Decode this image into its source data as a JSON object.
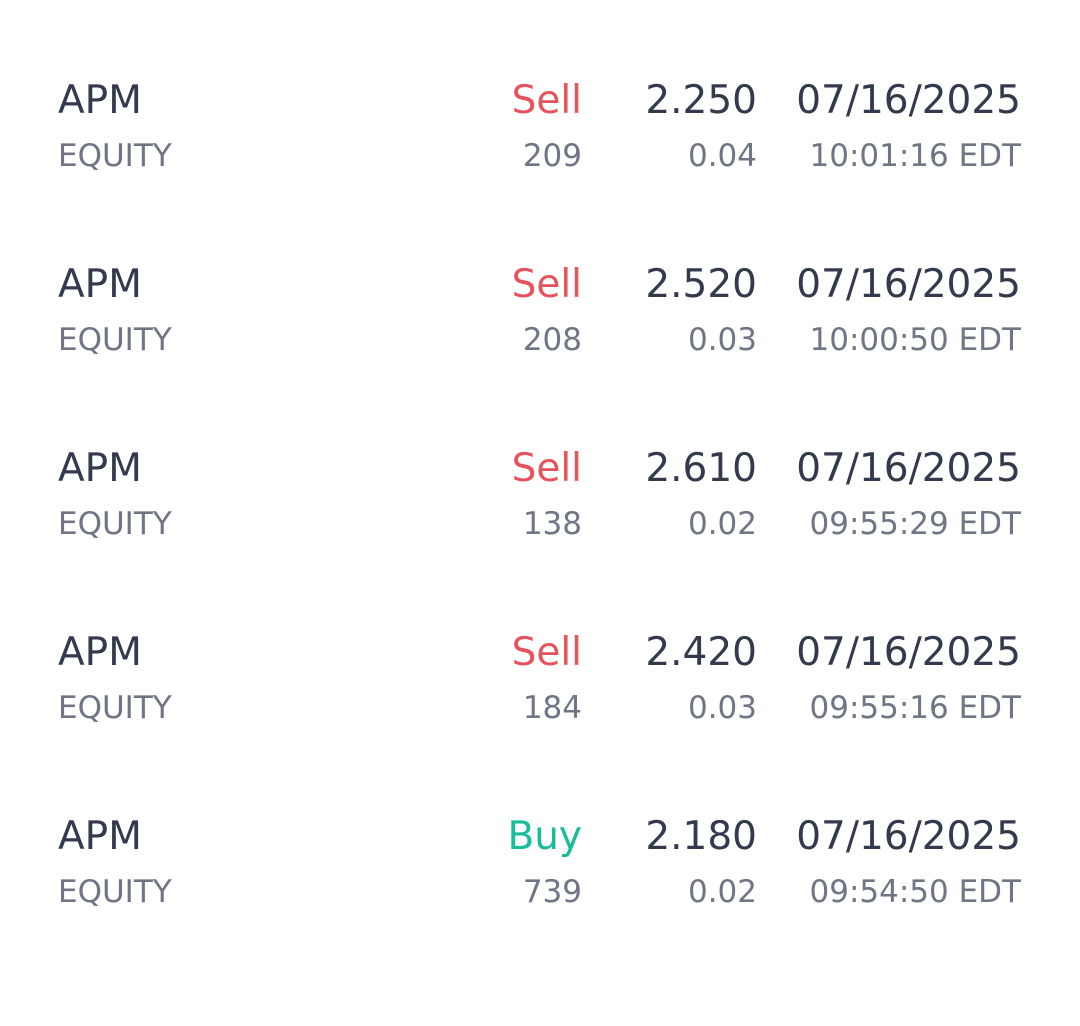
{
  "colors": {
    "sell": "#e5535f",
    "buy": "#17bc98",
    "primary_text": "#333a4d",
    "secondary_text": "#6f7585"
  },
  "trades": [
    {
      "symbol": "APM",
      "type": "EQUITY",
      "side": "Sell",
      "quantity": "209",
      "price": "2.250",
      "change": "0.04",
      "date": "07/16/2025",
      "time": "10:01:16 EDT"
    },
    {
      "symbol": "APM",
      "type": "EQUITY",
      "side": "Sell",
      "quantity": "208",
      "price": "2.520",
      "change": "0.03",
      "date": "07/16/2025",
      "time": "10:00:50 EDT"
    },
    {
      "symbol": "APM",
      "type": "EQUITY",
      "side": "Sell",
      "quantity": "138",
      "price": "2.610",
      "change": "0.02",
      "date": "07/16/2025",
      "time": "09:55:29 EDT"
    },
    {
      "symbol": "APM",
      "type": "EQUITY",
      "side": "Sell",
      "quantity": "184",
      "price": "2.420",
      "change": "0.03",
      "date": "07/16/2025",
      "time": "09:55:16 EDT"
    },
    {
      "symbol": "APM",
      "type": "EQUITY",
      "side": "Buy",
      "quantity": "739",
      "price": "2.180",
      "change": "0.02",
      "date": "07/16/2025",
      "time": "09:54:50 EDT"
    }
  ]
}
